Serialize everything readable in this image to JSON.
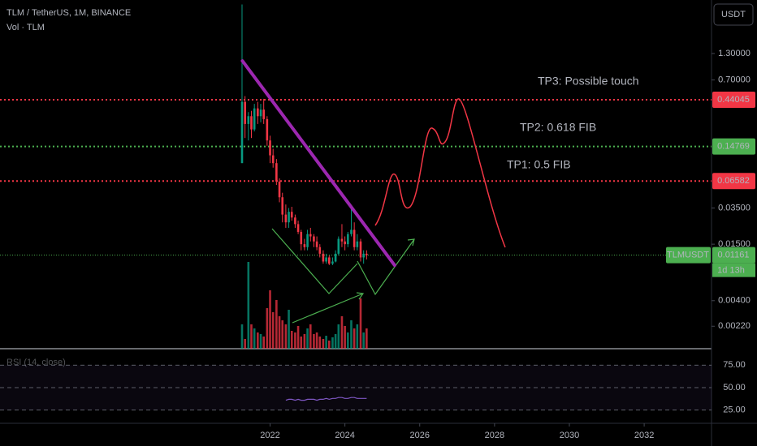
{
  "chart_data": {
    "type": "candlestick",
    "title": "TLM / TetherUS, 1M, BINANCE",
    "volume_label": "Vol · TLM",
    "currency": "USDT",
    "symbol": "TLMUSDT",
    "countdown": "1d 13h",
    "log_scale": true,
    "up_color": "#089981",
    "down_color": "#f23645",
    "x": [
      2021.25,
      2021.33,
      2021.42,
      2021.5,
      2021.58,
      2021.67,
      2021.75,
      2021.83,
      2021.92,
      2022,
      2022.08,
      2022.17,
      2022.25,
      2022.33,
      2022.42,
      2022.5,
      2022.58,
      2022.67,
      2022.75,
      2022.83,
      2022.92,
      2023,
      2023.08,
      2023.17,
      2023.25,
      2023.33,
      2023.42,
      2023.5,
      2023.58,
      2023.67,
      2023.75,
      2023.83,
      2023.92,
      2024,
      2024.08,
      2024.17,
      2024.25,
      2024.33,
      2024.42,
      2024.5,
      2024.58
    ],
    "open": [
      0.1,
      0.42,
      0.25,
      0.3,
      0.22,
      0.36,
      0.3,
      0.35,
      0.28,
      0.17,
      0.12,
      0.1,
      0.065,
      0.045,
      0.03,
      0.025,
      0.032,
      0.028,
      0.024,
      0.02,
      0.015,
      0.014,
      0.019,
      0.018,
      0.016,
      0.014,
      0.012,
      0.01,
      0.011,
      0.0095,
      0.01,
      0.012,
      0.017,
      0.016,
      0.015,
      0.019,
      0.021,
      0.014,
      0.016,
      0.011,
      0.012
    ],
    "high": [
      4.1,
      0.48,
      0.33,
      0.34,
      0.4,
      0.42,
      0.4,
      0.45,
      0.3,
      0.19,
      0.14,
      0.11,
      0.07,
      0.05,
      0.038,
      0.035,
      0.036,
      0.03,
      0.026,
      0.021,
      0.017,
      0.021,
      0.022,
      0.019,
      0.018,
      0.015,
      0.013,
      0.012,
      0.0115,
      0.011,
      0.013,
      0.018,
      0.024,
      0.018,
      0.02,
      0.034,
      0.025,
      0.019,
      0.017,
      0.013,
      0.013
    ],
    "low": [
      0.1,
      0.18,
      0.17,
      0.18,
      0.21,
      0.25,
      0.26,
      0.25,
      0.15,
      0.1,
      0.09,
      0.06,
      0.04,
      0.025,
      0.022,
      0.022,
      0.026,
      0.022,
      0.019,
      0.013,
      0.013,
      0.013,
      0.016,
      0.014,
      0.013,
      0.011,
      0.0095,
      0.0095,
      0.0092,
      0.0092,
      0.0098,
      0.0115,
      0.014,
      0.013,
      0.014,
      0.018,
      0.013,
      0.013,
      0.01,
      0.0095,
      0.0105
    ],
    "close": [
      0.42,
      0.25,
      0.3,
      0.22,
      0.36,
      0.3,
      0.35,
      0.28,
      0.17,
      0.12,
      0.1,
      0.065,
      0.045,
      0.03,
      0.025,
      0.032,
      0.028,
      0.024,
      0.02,
      0.015,
      0.014,
      0.019,
      0.018,
      0.016,
      0.014,
      0.012,
      0.01,
      0.011,
      0.0095,
      0.01,
      0.012,
      0.017,
      0.016,
      0.015,
      0.019,
      0.021,
      0.014,
      0.016,
      0.011,
      0.012,
      0.01161
    ],
    "volume": [
      30,
      12,
      107,
      30,
      25,
      20,
      18,
      15,
      50,
      72,
      45,
      60,
      40,
      35,
      30,
      48,
      22,
      20,
      28,
      15,
      18,
      25,
      30,
      18,
      20,
      15,
      12,
      16,
      10,
      14,
      18,
      30,
      40,
      28,
      20,
      35,
      25,
      30,
      62,
      20,
      25
    ],
    "volume_ylim": [
      0,
      430
    ],
    "xlim": [
      2014.78,
      2033.8
    ],
    "xticks": [
      2022,
      2024,
      2026,
      2028,
      2030,
      2032
    ],
    "ylim": [
      0.0013,
      4.55
    ],
    "yticks": [
      {
        "value": 1.3,
        "label": "1.30000"
      },
      {
        "value": 0.7,
        "label": "0.70000"
      },
      {
        "value": 0.035,
        "label": "0.03500"
      },
      {
        "value": 0.015,
        "label": "0.01500"
      },
      {
        "value": 0.004,
        "label": "0.00400"
      },
      {
        "value": 0.0022,
        "label": "0.00220"
      }
    ],
    "levels": [
      {
        "value": 0.44045,
        "color": "#f23645"
      },
      {
        "value": 0.14769,
        "color": "#4caf50"
      },
      {
        "value": 0.06582,
        "color": "#f23645"
      },
      {
        "value": 0.01161,
        "color": "#4caf50"
      }
    ],
    "annotations": [
      "TP3: Possible touch",
      "TP2: 0.618 FIB",
      "TP1: 0.5 FIB"
    ],
    "trendline": {
      "x": [
        2021.26,
        2025.33
      ],
      "y": [
        1.095,
        0.00915
      ],
      "color": "#9c27b0"
    },
    "rsi_label": "RSI (14, close)",
    "rsi": [
      null,
      null,
      null,
      null,
      null,
      null,
      null,
      null,
      null,
      null,
      null,
      null,
      null,
      null,
      36,
      37,
      37,
      36,
      37,
      36,
      36,
      37,
      37,
      37,
      36,
      37,
      37,
      38,
      37,
      38,
      38,
      39,
      39,
      38,
      38,
      39,
      39,
      38,
      38,
      38,
      38
    ],
    "rsi_ylim": [
      14,
      86
    ],
    "rsi_yticks": [
      {
        "value": 75,
        "label": "75.00"
      },
      {
        "value": 50,
        "label": "50.00"
      },
      {
        "value": 25,
        "label": "25.00"
      }
    ]
  }
}
